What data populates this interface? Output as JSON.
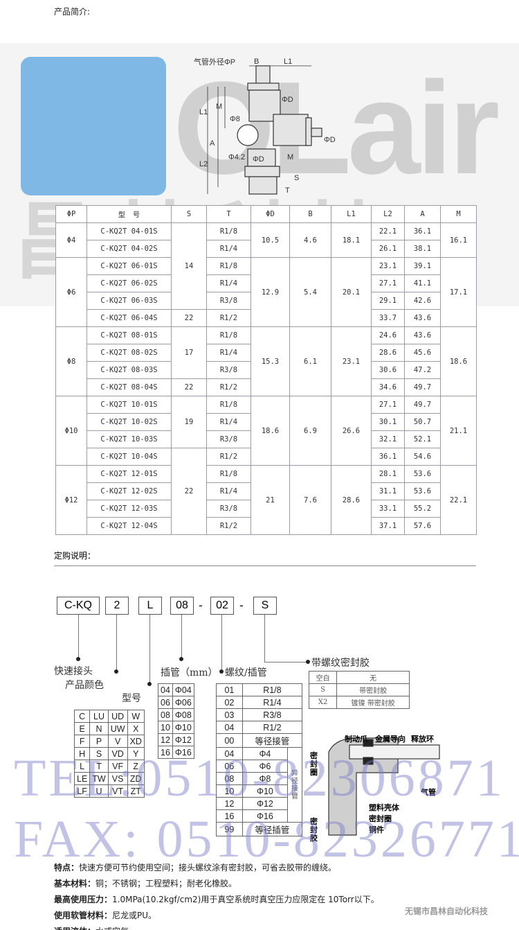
{
  "intro_label": "产品简介:",
  "watermark": {
    "logo": "OLair",
    "brand_cn": "昌林科技",
    "tel": "TEL:0510-82306871",
    "fax": "FAX: 0510-82326771",
    "company": "无锡市昌林自动化科技"
  },
  "drawing_labels": {
    "tube_od": "气管外径ΦP",
    "B": "B",
    "L1": "L1",
    "D": "ΦD",
    "M": "M",
    "L1_v": "L1",
    "d8": "Φ8",
    "A": "A",
    "L2": "L2",
    "d42": "Φ4.2",
    "M2": "M",
    "D2": "ΦD",
    "D3": "ΦD",
    "S": "S",
    "T": "T"
  },
  "spec_table": {
    "headers": [
      "ΦP",
      "型　号",
      "S",
      "T",
      "ΦD",
      "B",
      "L1",
      "L2",
      "A",
      "M"
    ],
    "groups": [
      {
        "p": "Φ4",
        "d": "10.5",
        "b": "4.6",
        "l1": "18.1",
        "m": "16.1",
        "rows": [
          [
            "C-KQ2T 04-01S",
            "R1/8",
            "22.1",
            "36.1"
          ],
          [
            "C-KQ2T 04-02S",
            "R1/4",
            "26.1",
            "38.1"
          ]
        ]
      },
      {
        "p": "Φ6",
        "d": "12.9",
        "b": "5.4",
        "l1": "20.1",
        "m": "17.1",
        "rows": [
          [
            "C-KQ2T 06-01S",
            "R1/8",
            "23.1",
            "39.1"
          ],
          [
            "C-KQ2T 06-02S",
            "R1/4",
            "27.1",
            "41.1"
          ],
          [
            "C-KQ2T 06-03S",
            "R3/8",
            "29.1",
            "42.6"
          ],
          [
            "C-KQ2T 06-04S",
            "R1/2",
            "33.7",
            "43.6"
          ]
        ]
      },
      {
        "p": "Φ8",
        "d": "15.3",
        "b": "6.1",
        "l1": "23.1",
        "m": "18.6",
        "rows": [
          [
            "C-KQ2T 08-01S",
            "R1/8",
            "24.6",
            "43.6"
          ],
          [
            "C-KQ2T 08-02S",
            "R1/4",
            "28.6",
            "45.6"
          ],
          [
            "C-KQ2T 08-03S",
            "R3/8",
            "30.6",
            "47.2"
          ],
          [
            "C-KQ2T 08-04S",
            "R1/2",
            "34.6",
            "49.7"
          ]
        ]
      },
      {
        "p": "Φ10",
        "d": "18.6",
        "b": "6.9",
        "l1": "26.6",
        "m": "21.1",
        "rows": [
          [
            "C-KQ2T 10-01S",
            "R1/8",
            "27.1",
            "49.7"
          ],
          [
            "C-KQ2T 10-02S",
            "R1/4",
            "30.1",
            "50.7"
          ],
          [
            "C-KQ2T 10-03S",
            "R3/8",
            "32.1",
            "52.1"
          ],
          [
            "C-KQ2T 10-04S",
            "R1/2",
            "36.1",
            "54.6"
          ]
        ]
      },
      {
        "p": "Φ12",
        "d": "21",
        "b": "7.6",
        "l1": "28.6",
        "m": "22.1",
        "rows": [
          [
            "C-KQ2T 12-01S",
            "R1/8",
            "28.1",
            "53.6"
          ],
          [
            "C-KQ2T 12-02S",
            "R1/4",
            "31.1",
            "53.6"
          ],
          [
            "C-KQ2T 12-03S",
            "R3/8",
            "33.1",
            "55.2"
          ],
          [
            "C-KQ2T 12-04S",
            "R1/2",
            "37.1",
            "57.6"
          ]
        ]
      }
    ],
    "s_spans": [
      {
        "v": "14",
        "n": 5
      },
      {
        "v": "22",
        "n": 1
      },
      {
        "v": "17",
        "n": 3
      },
      {
        "v": "22",
        "n": 1
      },
      {
        "v": "19",
        "n": 3
      },
      {
        "v": "22",
        "n": 5
      }
    ]
  },
  "order": {
    "title": "定购说明：",
    "codes": [
      "C-KQ",
      "2",
      "L",
      "08",
      "02",
      "S"
    ],
    "sep": "-",
    "labels": {
      "fitting": "快速接头",
      "color": "产品颜色",
      "model": "型号",
      "tube": "插管（mm）",
      "thread": "螺纹/插管",
      "sealant": "带螺纹密封胶"
    },
    "model_grid": [
      [
        "C",
        "LU",
        "UD",
        "W"
      ],
      [
        "E",
        "N",
        "UW",
        "X"
      ],
      [
        "F",
        "P",
        "V",
        "XD"
      ],
      [
        "H",
        "S",
        "VD",
        "Y"
      ],
      [
        "L",
        "T",
        "VF",
        "Z"
      ],
      [
        "LE",
        "TW",
        "VS",
        "ZD"
      ],
      [
        "LF",
        "U",
        "VT",
        "ZT"
      ]
    ],
    "tube_table": [
      [
        "04",
        "Φ04"
      ],
      [
        "06",
        "Φ06"
      ],
      [
        "08",
        "Φ08"
      ],
      [
        "10",
        "Φ10"
      ],
      [
        "12",
        "Φ12"
      ],
      [
        "16",
        "Φ16"
      ]
    ],
    "thread_table": [
      [
        "01",
        "R1/8"
      ],
      [
        "02",
        "R1/4"
      ],
      [
        "03",
        "R3/8"
      ],
      [
        "04",
        "R1/2"
      ],
      [
        "00",
        "等径接管"
      ]
    ],
    "reducer_table": [
      [
        "04",
        "Φ4"
      ],
      [
        "06",
        "Φ6"
      ],
      [
        "08",
        "Φ8"
      ],
      [
        "10",
        "Φ10"
      ],
      [
        "12",
        "Φ12"
      ],
      [
        "16",
        "Φ16"
      ]
    ],
    "reducer_label": "异径接管",
    "thread_last": [
      "99",
      "等径插管"
    ],
    "sealant_table": [
      [
        "空白",
        "无"
      ],
      [
        "S",
        "带密封胶"
      ],
      [
        "X2",
        "镀镍 带密封胶"
      ]
    ]
  },
  "section_labels": {
    "claw": "制动爪",
    "guide": "金属导向",
    "release": "释放环",
    "seal_ring_l": "密封圈",
    "tube": "气管",
    "shell": "塑料壳体",
    "seal_ring": "密封圈",
    "copper": "铜件",
    "sealant": "密封胶"
  },
  "features": [
    {
      "k": "特点：",
      "v": "快速方便可节约使用空间；接头螺纹涂有密封胶，可省去胶带的缠绕。"
    },
    {
      "k": "基本材料：",
      "v": "铜；不锈钢；工程塑料；耐老化橡胶。"
    },
    {
      "k": "最高使用压力：",
      "v": "1.0MPa(10.2kgf/cm2)用于真空系统时真空压力应限定在 10Torr以下。"
    },
    {
      "k": "使用软管材料：",
      "v": "尼龙或PU。"
    },
    {
      "k": "适用流体：",
      "v": "水或空气"
    }
  ]
}
